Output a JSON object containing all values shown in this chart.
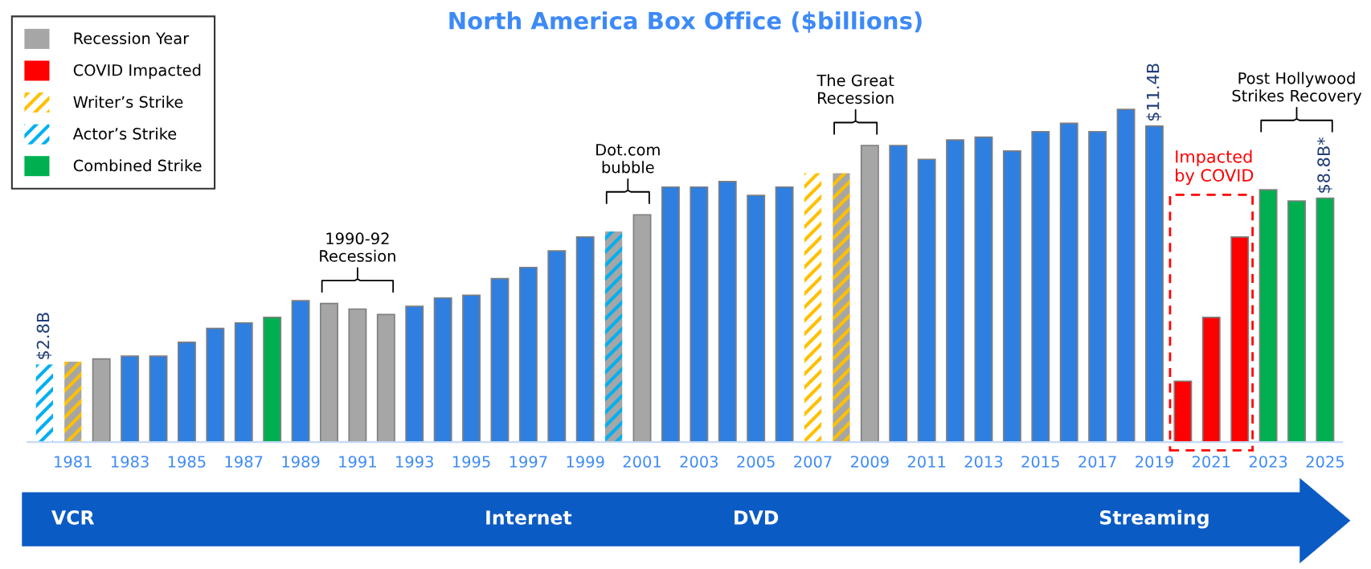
{
  "chart_data": {
    "type": "bar",
    "title": "North America Box Office ($billions)",
    "categories": [
      null,
      "1981",
      null,
      "1983",
      null,
      "1985",
      null,
      "1987",
      null,
      "1989",
      null,
      "1991",
      null,
      "1993",
      null,
      "1995",
      null,
      "1997",
      null,
      "1999",
      null,
      "2001",
      null,
      "2003",
      null,
      "2005",
      null,
      "2007",
      null,
      "2009",
      null,
      "2011",
      null,
      "2013",
      null,
      "2015",
      null,
      "2017",
      null,
      "2019",
      null,
      "2021",
      null,
      "2023",
      null,
      "2025"
    ],
    "stacked": true,
    "series": [
      {
        "color": "#2f7fe0",
        "values": [
          null,
          null,
          null,
          3.1,
          3.1,
          3.6,
          4.1,
          4.3,
          null,
          5.1,
          null,
          null,
          null,
          4.9,
          5.2,
          5.3,
          5.9,
          6.3,
          6.9,
          7.4,
          null,
          null,
          9.2,
          9.2,
          9.4,
          8.9,
          9.2,
          null,
          null,
          null,
          10.7,
          10.2,
          10.9,
          11.0,
          10.5,
          11.2,
          11.5,
          11.2,
          12.0,
          11.4,
          null,
          null,
          null,
          null,
          null,
          null
        ],
        "value_labels": [
          null,
          null,
          null,
          null,
          null,
          null,
          null,
          null,
          null,
          null,
          null,
          null,
          null,
          null,
          null,
          null,
          null,
          null,
          null,
          null,
          null,
          null,
          null,
          null,
          null,
          null,
          null,
          null,
          null,
          null,
          null,
          null,
          null,
          null,
          null,
          null,
          null,
          null,
          null,
          "$11.4B",
          null,
          null,
          null,
          null,
          null,
          null
        ]
      },
      {
        "name": "Recession Year",
        "color": "#a6a6a6",
        "values": [
          null,
          null,
          3.0,
          null,
          null,
          null,
          null,
          null,
          null,
          null,
          5.0,
          4.8,
          4.6,
          null,
          null,
          null,
          null,
          null,
          null,
          null,
          null,
          8.2,
          null,
          null,
          null,
          null,
          null,
          null,
          null,
          10.7,
          null,
          null,
          null,
          null,
          null,
          null,
          null,
          null,
          null,
          null,
          null,
          null,
          null,
          null,
          null,
          null
        ]
      },
      {
        "name": "COVID Impacted",
        "color": "#ff0000",
        "values": [
          null,
          null,
          null,
          null,
          null,
          null,
          null,
          null,
          null,
          null,
          null,
          null,
          null,
          null,
          null,
          null,
          null,
          null,
          null,
          null,
          null,
          null,
          null,
          null,
          null,
          null,
          null,
          null,
          null,
          null,
          null,
          null,
          null,
          null,
          null,
          null,
          null,
          null,
          null,
          null,
          2.2,
          4.5,
          7.4,
          null,
          null,
          null
        ]
      },
      {
        "name": "Writer’s Strike",
        "color": "#ffc000",
        "colors": [
          null,
          "#a6a6a6",
          null,
          null,
          null,
          null,
          null,
          null,
          null,
          null,
          null,
          null,
          null,
          null,
          null,
          null,
          null,
          null,
          null,
          null,
          null,
          null,
          null,
          null,
          null,
          null,
          null,
          "#ffffff",
          "#a6a6a6",
          null,
          null,
          null,
          null,
          null,
          null,
          null,
          null,
          null,
          null,
          null,
          null,
          null,
          null,
          null,
          null,
          null
        ],
        "values": [
          null,
          2.9,
          null,
          null,
          null,
          null,
          null,
          null,
          null,
          null,
          null,
          null,
          null,
          null,
          null,
          null,
          null,
          null,
          null,
          null,
          null,
          null,
          null,
          null,
          null,
          null,
          null,
          9.7,
          9.7,
          null,
          null,
          null,
          null,
          null,
          null,
          null,
          null,
          null,
          null,
          null,
          null,
          null,
          null,
          null,
          null,
          null
        ]
      },
      {
        "name": "Actor’s Strike",
        "color": "#00b0f0",
        "colors": [
          "#ffffff",
          null,
          null,
          null,
          null,
          null,
          null,
          null,
          null,
          null,
          null,
          null,
          null,
          null,
          null,
          null,
          null,
          null,
          null,
          null,
          "#a6a6a6",
          null,
          null,
          null,
          null,
          null,
          null,
          null,
          null,
          null,
          null,
          null,
          null,
          null,
          null,
          null,
          null,
          null,
          null,
          null,
          null,
          null,
          null,
          null,
          null,
          null
        ],
        "values": [
          2.8,
          null,
          null,
          null,
          null,
          null,
          null,
          null,
          null,
          null,
          null,
          null,
          null,
          null,
          null,
          null,
          null,
          null,
          null,
          null,
          7.6,
          null,
          null,
          null,
          null,
          null,
          null,
          null,
          null,
          null,
          null,
          null,
          null,
          null,
          null,
          null,
          null,
          null,
          null,
          null,
          null,
          null,
          null,
          null,
          null,
          null
        ],
        "value_labels": [
          "$2.8B",
          null,
          null,
          null,
          null,
          null,
          null,
          null,
          null,
          null,
          null,
          null,
          null,
          null,
          null,
          null,
          null,
          null,
          null,
          null,
          null,
          null,
          null,
          null,
          null,
          null,
          null,
          null,
          null,
          null,
          null,
          null,
          null,
          null,
          null,
          null,
          null,
          null,
          null,
          null,
          null,
          null,
          null,
          null,
          null,
          null
        ]
      },
      {
        "name": "Combined Strike",
        "color": "#00b050",
        "values": [
          null,
          null,
          null,
          null,
          null,
          null,
          null,
          null,
          4.5,
          null,
          null,
          null,
          null,
          null,
          null,
          null,
          null,
          null,
          null,
          null,
          null,
          null,
          null,
          null,
          null,
          null,
          null,
          null,
          null,
          null,
          null,
          null,
          null,
          null,
          null,
          null,
          null,
          null,
          null,
          null,
          null,
          null,
          null,
          9.1,
          8.7,
          8.8
        ],
        "value_labels": [
          null,
          null,
          null,
          null,
          null,
          null,
          null,
          null,
          null,
          null,
          null,
          null,
          null,
          null,
          null,
          null,
          null,
          null,
          null,
          null,
          null,
          null,
          null,
          null,
          null,
          null,
          null,
          null,
          null,
          null,
          null,
          null,
          null,
          null,
          null,
          null,
          null,
          null,
          null,
          null,
          null,
          null,
          null,
          null,
          null,
          "$8.8B*"
        ]
      }
    ],
    "annotations": [
      "1990-92\nRecession",
      "Dot.com\nbubble",
      "The Great\nRecession",
      "Post Hollywood\nStrikes Recovery",
      "Impacted\nby COVID",
      "VCR",
      "Internet",
      "DVD",
      "Streaming"
    ],
    "legend": "top left",
    "grid": false
  }
}
